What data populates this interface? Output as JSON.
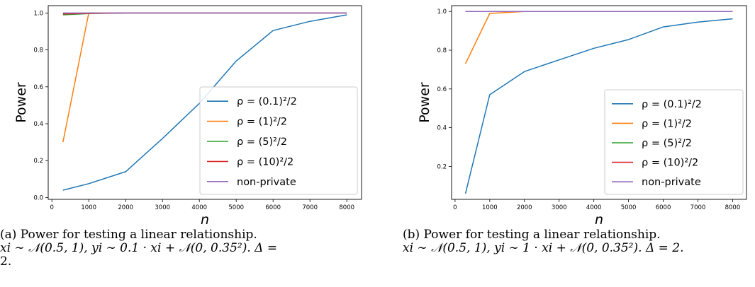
{
  "colors": {
    "series": [
      "#1f77b4",
      "#ff7f0e",
      "#2ca02c",
      "#d62728",
      "#9467bd"
    ]
  },
  "chart_data": [
    {
      "type": "line",
      "xlabel": "n",
      "ylabel": "Power",
      "xlim": [
        -100,
        8400
      ],
      "ylim": [
        -0.01,
        1.04
      ],
      "xticks": [
        0,
        1000,
        2000,
        3000,
        4000,
        5000,
        6000,
        7000,
        8000
      ],
      "xtick_labels": [
        "0",
        "1000",
        "2000",
        "3000",
        "4000",
        "5000",
        "6000",
        "7000",
        "8000"
      ],
      "yticks": [
        0.0,
        0.2,
        0.4,
        0.6,
        0.8,
        1.0
      ],
      "ytick_labels": [
        "0.0",
        "0.2",
        "0.4",
        "0.6",
        "0.8",
        "1.0"
      ],
      "legend_placement": "lower-right",
      "x": [
        300,
        1000,
        2000,
        3000,
        4000,
        5000,
        6000,
        7000,
        8000
      ],
      "series": [
        {
          "name": "ρ = (0.1)²/2",
          "values": [
            0.04,
            0.075,
            0.14,
            0.32,
            0.51,
            0.74,
            0.905,
            0.955,
            0.99
          ]
        },
        {
          "name": "ρ = (1)²/2",
          "values": [
            0.3,
            1.0,
            1.0,
            1.0,
            1.0,
            1.0,
            1.0,
            1.0,
            1.0
          ]
        },
        {
          "name": "ρ = (5)²/2",
          "values": [
            0.99,
            0.997,
            1.0,
            1.0,
            1.0,
            1.0,
            1.0,
            1.0,
            1.0
          ]
        },
        {
          "name": "ρ = (10)²/2",
          "values": [
            0.995,
            0.998,
            1.0,
            1.0,
            1.0,
            1.0,
            1.0,
            1.0,
            1.0
          ]
        },
        {
          "name": "non-private",
          "values": [
            1.0,
            1.0,
            1.0,
            1.0,
            1.0,
            1.0,
            1.0,
            1.0,
            1.0
          ]
        }
      ]
    },
    {
      "type": "line",
      "xlabel": "n",
      "ylabel": "Power",
      "xlim": [
        -100,
        8400
      ],
      "ylim": [
        0.03,
        1.03
      ],
      "xticks": [
        0,
        1000,
        2000,
        3000,
        4000,
        5000,
        6000,
        7000,
        8000
      ],
      "xtick_labels": [
        "0",
        "1000",
        "2000",
        "3000",
        "4000",
        "5000",
        "6000",
        "7000",
        "8000"
      ],
      "yticks": [
        0.2,
        0.4,
        0.6,
        0.8,
        1.0
      ],
      "ytick_labels": [
        "0.2",
        "0.4",
        "0.6",
        "0.8",
        "1.0"
      ],
      "legend_placement": "lower-right",
      "x": [
        300,
        1000,
        2000,
        3000,
        4000,
        5000,
        6000,
        7000,
        8000
      ],
      "series": [
        {
          "name": "ρ = (0.1)²/2",
          "values": [
            0.06,
            0.57,
            0.69,
            0.75,
            0.81,
            0.855,
            0.92,
            0.945,
            0.962
          ]
        },
        {
          "name": "ρ = (1)²/2",
          "values": [
            0.73,
            0.99,
            1.0,
            1.0,
            1.0,
            1.0,
            1.0,
            1.0,
            1.0
          ]
        },
        {
          "name": "ρ = (5)²/2",
          "values": [
            1.0,
            1.0,
            1.0,
            1.0,
            1.0,
            1.0,
            1.0,
            1.0,
            1.0
          ]
        },
        {
          "name": "ρ = (10)²/2",
          "values": [
            1.0,
            1.0,
            1.0,
            1.0,
            1.0,
            1.0,
            1.0,
            1.0,
            1.0
          ]
        },
        {
          "name": "non-private",
          "values": [
            1.0,
            1.0,
            1.0,
            1.0,
            1.0,
            1.0,
            1.0,
            1.0,
            1.0
          ]
        }
      ]
    }
  ],
  "captions": [
    {
      "line1": "(a) Power for testing a linear relationship.",
      "line2": "xi ∼ 𝒩(0.5, 1), yi ∼ 0.1 · xi + 𝒩(0, 0.35²). Δ =",
      "line3": "2."
    },
    {
      "line1": "(b) Power for testing a linear relationship.",
      "line2": "xi ∼ 𝒩(0.5, 1), yi ∼ 1 · xi + 𝒩(0, 0.35²). Δ = 2."
    }
  ]
}
